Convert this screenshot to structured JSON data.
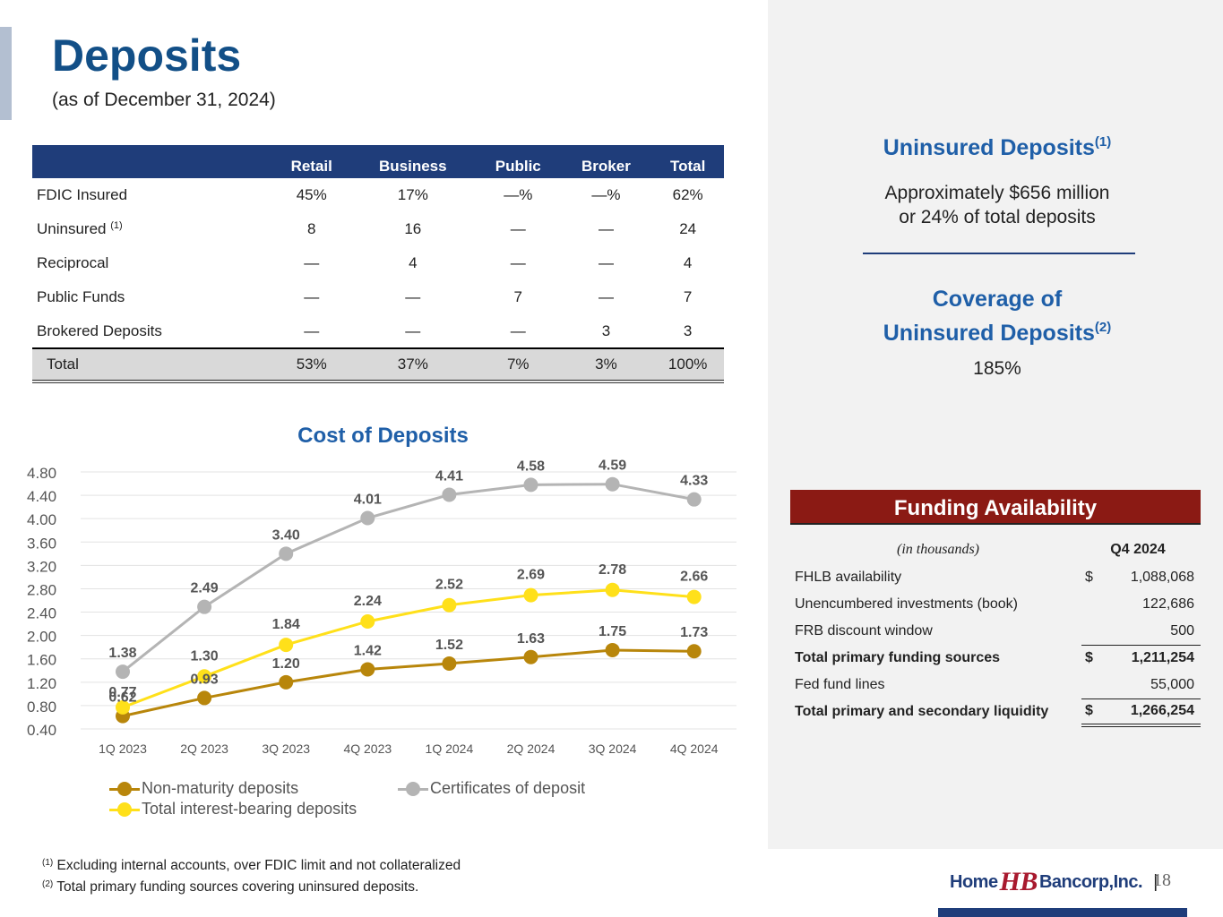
{
  "header": {
    "title": "Deposits",
    "subtitle": "(as of December 31, 2024)"
  },
  "deposits_table": {
    "columns": [
      "",
      "Retail",
      "Business",
      "Public",
      "Broker",
      "Total"
    ],
    "rows": [
      {
        "label": "FDIC Insured",
        "footnote": "",
        "values": [
          "45%",
          "17%",
          "—%",
          "—%",
          "62%"
        ]
      },
      {
        "label": "Uninsured ",
        "footnote": "(1)",
        "values": [
          "8",
          "16",
          "—",
          "—",
          "24"
        ]
      },
      {
        "label": "Reciprocal",
        "footnote": "",
        "values": [
          "—",
          "4",
          "—",
          "—",
          "4"
        ]
      },
      {
        "label": "Public Funds",
        "footnote": "",
        "values": [
          "—",
          "—",
          "7",
          "—",
          "7"
        ]
      },
      {
        "label": "Brokered Deposits",
        "footnote": "",
        "values": [
          "—",
          "—",
          "—",
          "3",
          "3"
        ]
      }
    ],
    "total": {
      "label": "Total",
      "values": [
        "53%",
        "37%",
        "7%",
        "3%",
        "100%"
      ]
    }
  },
  "chart_data": {
    "type": "line",
    "title": "Cost of Deposits",
    "categories": [
      "1Q 2023",
      "2Q 2023",
      "3Q 2023",
      "4Q 2023",
      "1Q 2024",
      "2Q 2024",
      "3Q 2024",
      "4Q 2024"
    ],
    "series": [
      {
        "name": "Non-maturity deposits",
        "color": "#b8860b",
        "values": [
          0.62,
          0.93,
          1.2,
          1.42,
          1.52,
          1.63,
          1.75,
          1.73
        ]
      },
      {
        "name": "Certificates of deposit",
        "color": "#b4b4b4",
        "values": [
          1.38,
          2.49,
          3.4,
          4.01,
          4.41,
          4.58,
          4.59,
          4.33
        ]
      },
      {
        "name": "Total interest-bearing deposits",
        "color": "#ffe01a",
        "values": [
          0.77,
          1.3,
          1.84,
          2.24,
          2.52,
          2.69,
          2.78,
          2.66
        ]
      }
    ],
    "yticks": [
      "0.40",
      "0.80",
      "1.20",
      "1.60",
      "2.00",
      "2.40",
      "2.80",
      "3.20",
      "3.60",
      "4.00",
      "4.40",
      "4.80"
    ],
    "ylim": [
      0.4,
      4.8
    ],
    "grid": true,
    "legend_position": "bottom"
  },
  "uninsured": {
    "title": "Uninsured Deposits",
    "footnote": "(1)",
    "line1": "Approximately $656 million",
    "line2": "or 24% of total deposits"
  },
  "coverage": {
    "title_line1": "Coverage of",
    "title_line2": "Uninsured Deposits",
    "footnote": "(2)",
    "value": "185%"
  },
  "funding": {
    "title": "Funding Availability",
    "units": "(in thousands)",
    "period": "Q4 2024",
    "rows": [
      {
        "label": "FHLB availability",
        "currency": "$",
        "value": "1,088,068"
      },
      {
        "label": "Unencumbered investments (book)",
        "currency": "",
        "value": "122,686"
      },
      {
        "label": "FRB discount window",
        "currency": "",
        "value": "500"
      },
      {
        "label": "Total primary funding sources",
        "currency": "$",
        "value": "1,211,254"
      },
      {
        "label": "Fed fund lines",
        "currency": "",
        "value": "55,000"
      },
      {
        "label": "Total primary and secondary liquidity",
        "currency": "$",
        "value": "1,266,254"
      }
    ]
  },
  "footnotes": [
    {
      "mark": "(1)",
      "text": " Excluding internal accounts, over FDIC limit and not collateralized"
    },
    {
      "mark": "(2)",
      "text": " Total primary funding sources covering uninsured deposits."
    }
  ],
  "footer": {
    "logo_left": "Home",
    "logo_mark": "HB",
    "logo_right": "Bancorp,Inc.",
    "separator": "|",
    "page_number": "18"
  }
}
